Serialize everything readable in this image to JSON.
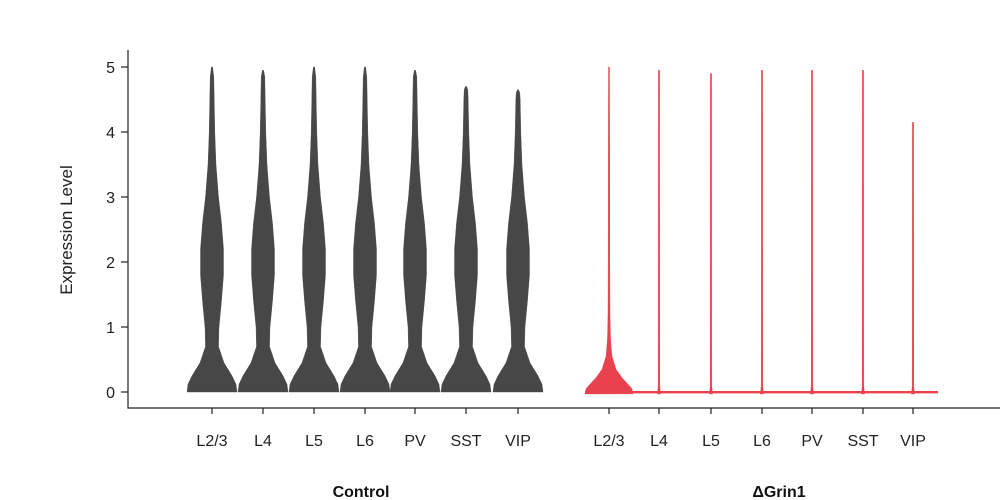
{
  "chart_data": {
    "type": "violin",
    "ylabel": "Expression Level",
    "ylim": [
      0,
      5
    ],
    "yticks": [
      0,
      1,
      2,
      3,
      4,
      5
    ],
    "categories": [
      "L2/3",
      "L4",
      "L5",
      "L6",
      "PV",
      "SST",
      "VIP"
    ],
    "groups": [
      {
        "name": "Control",
        "color": "#474747",
        "violins": [
          {
            "category": "L2/3",
            "max": 5.0
          },
          {
            "category": "L4",
            "max": 4.95
          },
          {
            "category": "L5",
            "max": 5.0
          },
          {
            "category": "L6",
            "max": 5.0
          },
          {
            "category": "PV",
            "max": 4.95
          },
          {
            "category": "SST",
            "max": 4.7
          },
          {
            "category": "VIP",
            "max": 4.65
          }
        ]
      },
      {
        "name": "ΔGrin1",
        "color": "#e8424f",
        "violins": [
          {
            "category": "L2/3",
            "max": 5.0
          },
          {
            "category": "L4",
            "max": 4.95
          },
          {
            "category": "L5",
            "max": 4.9
          },
          {
            "category": "L6",
            "max": 4.95
          },
          {
            "category": "PV",
            "max": 4.95
          },
          {
            "category": "SST",
            "max": 4.95
          },
          {
            "category": "VIP",
            "max": 4.15
          }
        ]
      }
    ]
  }
}
